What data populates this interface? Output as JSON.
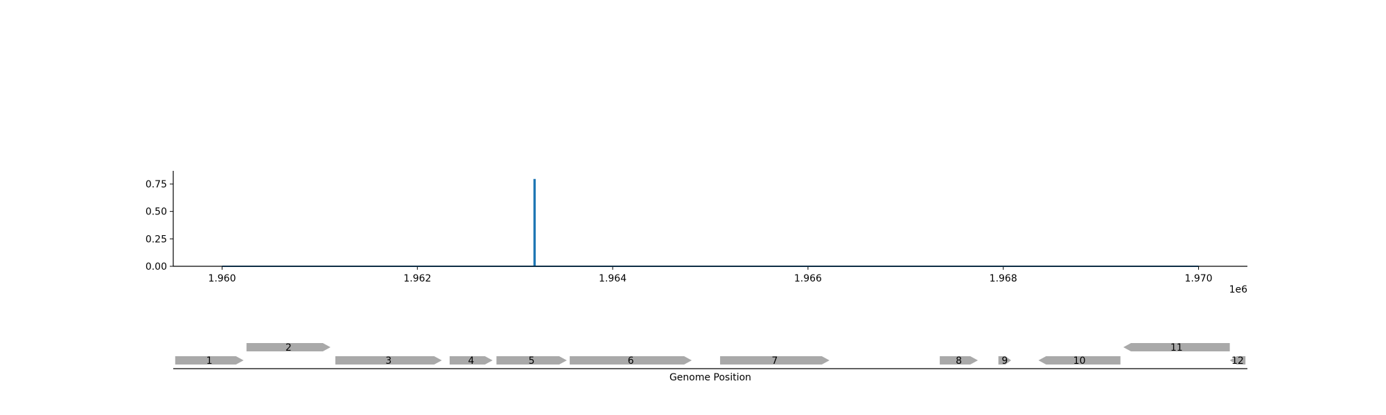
{
  "colors": {
    "signal_line": "#1f77b4",
    "gene_fill": "#a9a9a9",
    "axis": "#000000"
  },
  "chart_data": [
    {
      "type": "line",
      "x_axis": {
        "range": [
          1959500,
          1970500
        ],
        "ticks": [
          1960000,
          1962000,
          1964000,
          1966000,
          1968000,
          1970000
        ],
        "tick_labels": [
          "1.960",
          "1.962",
          "1.964",
          "1.966",
          "1.968",
          "1.970"
        ],
        "offset_label": "1e6"
      },
      "y_axis": {
        "range": [
          0,
          0.87
        ],
        "ticks": [
          0,
          0.25,
          0.5,
          0.75
        ],
        "tick_labels": [
          "0.00",
          "0.25",
          "0.50",
          "0.75"
        ]
      },
      "series": [
        {
          "points": [
            [
              1960000,
              0
            ],
            [
              1963195,
              0
            ],
            [
              1963195,
              0.79
            ],
            [
              1963205,
              0.79
            ],
            [
              1963205,
              0
            ],
            [
              1970000,
              0
            ]
          ]
        }
      ],
      "grid": false
    },
    {
      "type": "gene_track",
      "xlabel": "Genome Position",
      "x_range": [
        1959500,
        1970500
      ],
      "genes": [
        {
          "label": "1",
          "start": 1959520,
          "end": 1960220,
          "strand": "+",
          "row": 0
        },
        {
          "label": "2",
          "start": 1960250,
          "end": 1961110,
          "strand": "+",
          "row": 1
        },
        {
          "label": "3",
          "start": 1961160,
          "end": 1962250,
          "strand": "+",
          "row": 0
        },
        {
          "label": "4",
          "start": 1962330,
          "end": 1962770,
          "strand": "+",
          "row": 0
        },
        {
          "label": "5",
          "start": 1962810,
          "end": 1963530,
          "strand": "+",
          "row": 0
        },
        {
          "label": "6",
          "start": 1963560,
          "end": 1964810,
          "strand": "+",
          "row": 0
        },
        {
          "label": "7",
          "start": 1965100,
          "end": 1966220,
          "strand": "+",
          "row": 0
        },
        {
          "label": "8",
          "start": 1967350,
          "end": 1967740,
          "strand": "+",
          "row": 0
        },
        {
          "label": "9",
          "start": 1967950,
          "end": 1968080,
          "strand": "+",
          "row": 0
        },
        {
          "label": "10",
          "start": 1968360,
          "end": 1969200,
          "strand": "-",
          "row": 0
        },
        {
          "label": "11",
          "start": 1969230,
          "end": 1970320,
          "strand": "-",
          "row": 1
        },
        {
          "label": "12",
          "start": 1970320,
          "end": 1970480,
          "strand": "-",
          "row": 0
        }
      ]
    }
  ]
}
